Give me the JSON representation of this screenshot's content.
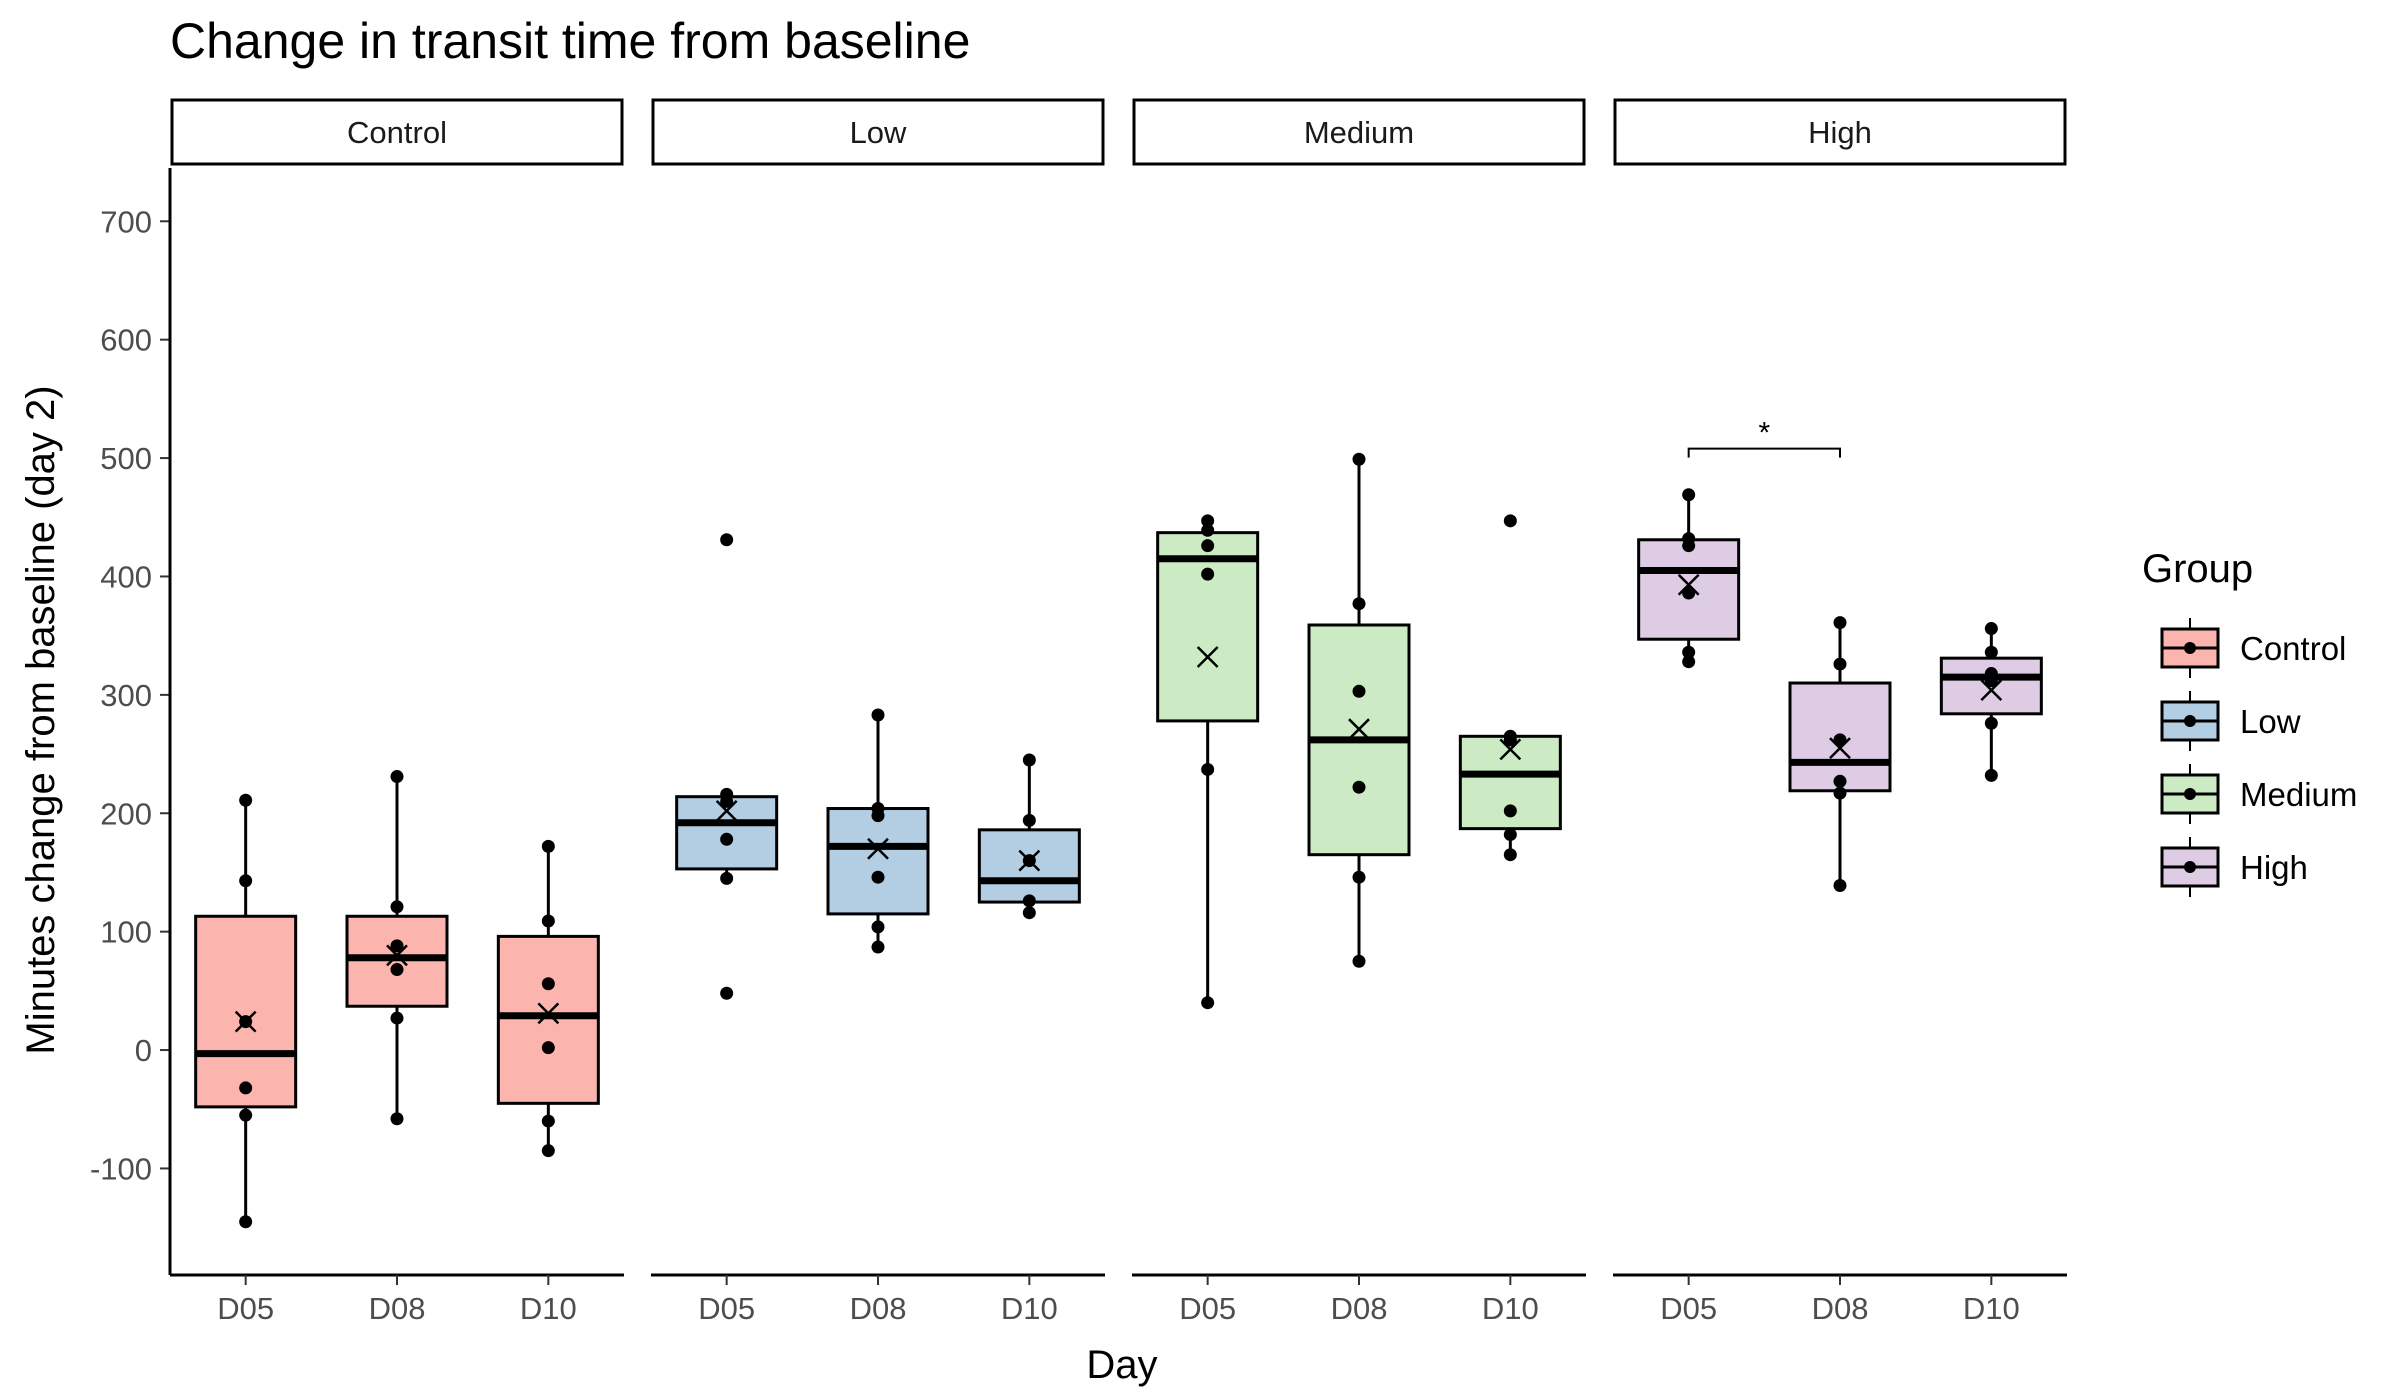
{
  "chart_data": {
    "type": "box",
    "title": "Change in transit time from baseline",
    "xlabel": "Day",
    "ylabel": "Minutes change from baseline (day 2)",
    "ylim": [
      -190,
      745
    ],
    "yticks": [
      -100,
      0,
      100,
      200,
      300,
      400,
      500,
      600,
      700
    ],
    "ytick_labels": [
      "-100",
      "0",
      "100",
      "200",
      "300",
      "400",
      "500",
      "600",
      "700"
    ],
    "categories": [
      "D05",
      "D08",
      "D10"
    ],
    "legend": {
      "title": "Group",
      "placement": "right"
    },
    "grid": false,
    "panels": [
      {
        "name": "Control",
        "color": "#FBB4AE",
        "boxes": [
          {
            "day": "D05",
            "q1": -48,
            "median": -3,
            "q3": 113,
            "whisker_low": -145,
            "whisker_high": 211,
            "mean": 24,
            "points": [
              211,
              143,
              24,
              -32,
              -55,
              -145
            ]
          },
          {
            "day": "D08",
            "q1": 37,
            "median": 78,
            "q3": 113,
            "whisker_low": -58,
            "whisker_high": 231,
            "mean": 80,
            "points": [
              231,
              121,
              88,
              68,
              27,
              -58
            ]
          },
          {
            "day": "D10",
            "q1": -45,
            "median": 29,
            "q3": 96,
            "whisker_low": -85,
            "whisker_high": 172,
            "mean": 31,
            "points": [
              172,
              109,
              56,
              2,
              -60,
              -85
            ]
          }
        ]
      },
      {
        "name": "Low",
        "color": "#B3CDE3",
        "boxes": [
          {
            "day": "D05",
            "q1": 153,
            "median": 192,
            "q3": 214,
            "whisker_low": 145,
            "whisker_high": 214,
            "mean": 202,
            "points": [
              431,
              216,
              210,
              178,
              145,
              48
            ]
          },
          {
            "day": "D08",
            "q1": 115,
            "median": 172,
            "q3": 204,
            "whisker_low": 87,
            "whisker_high": 283,
            "mean": 170,
            "points": [
              283,
              204,
              198,
              146,
              104,
              87
            ]
          },
          {
            "day": "D10",
            "q1": 125,
            "median": 143,
            "q3": 186,
            "whisker_low": 116,
            "whisker_high": 245,
            "mean": 160,
            "points": [
              245,
              194,
              160,
              126,
              116
            ]
          }
        ]
      },
      {
        "name": "Medium",
        "color": "#CCEBC5",
        "boxes": [
          {
            "day": "D05",
            "q1": 278,
            "median": 415,
            "q3": 437,
            "whisker_low": 40,
            "whisker_high": 447,
            "mean": 332,
            "points": [
              447,
              439,
              426,
              402,
              237,
              40
            ]
          },
          {
            "day": "D08",
            "q1": 165,
            "median": 262,
            "q3": 359,
            "whisker_low": 75,
            "whisker_high": 499,
            "mean": 271,
            "points": [
              499,
              377,
              303,
              222,
              146,
              75
            ]
          },
          {
            "day": "D10",
            "q1": 187,
            "median": 233,
            "q3": 265,
            "whisker_low": 165,
            "whisker_high": 265,
            "mean": 254,
            "points": [
              447,
              265,
              262,
              202,
              182,
              165
            ]
          }
        ]
      },
      {
        "name": "High",
        "color": "#DECBE4",
        "boxes": [
          {
            "day": "D05",
            "q1": 347,
            "median": 405,
            "q3": 431,
            "whisker_low": 328,
            "whisker_high": 469,
            "mean": 393,
            "points": [
              469,
              432,
              426,
              386,
              336,
              328
            ]
          },
          {
            "day": "D08",
            "q1": 219,
            "median": 243,
            "q3": 310,
            "whisker_low": 139,
            "whisker_high": 361,
            "mean": 255,
            "points": [
              361,
              326,
              262,
              227,
              217,
              139
            ]
          },
          {
            "day": "D10",
            "q1": 284,
            "median": 315,
            "q3": 331,
            "whisker_low": 232,
            "whisker_high": 356,
            "mean": 304,
            "points": [
              356,
              336,
              318,
              312,
              276,
              232
            ]
          }
        ]
      }
    ],
    "annotations": [
      {
        "panel": "High",
        "from": "D05",
        "to": "D08",
        "y": 508,
        "label": "*"
      }
    ]
  }
}
